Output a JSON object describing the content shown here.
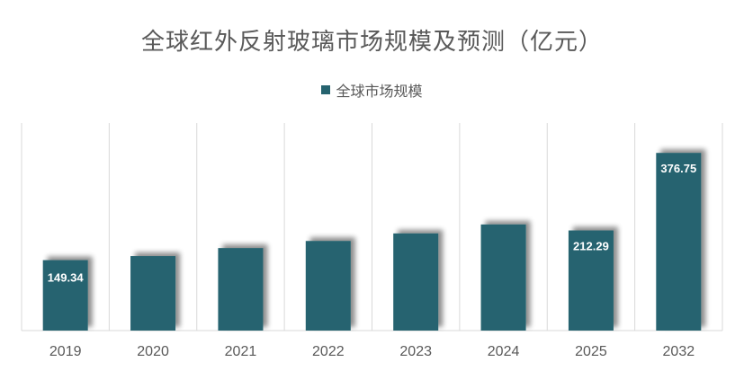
{
  "chart_data": {
    "type": "bar",
    "title": "全球红外反射玻璃市场规模及预测（亿元）",
    "xlabel": "",
    "ylabel": "",
    "categories": [
      "2019",
      "2020",
      "2021",
      "2022",
      "2023",
      "2024",
      "2025",
      "2032"
    ],
    "series": [
      {
        "name": "全球市场规模",
        "values": [
          149.34,
          158,
          175,
          190,
          206,
          225,
          212.29,
          376.75
        ],
        "data_labels": [
          "149.34",
          "",
          "",
          "",
          "",
          "",
          "212.29",
          "376.75"
        ]
      }
    ],
    "ylim": [
      0,
      440
    ],
    "legend_position": "top-center",
    "grid": "vertical-category-separators",
    "bar_color": "#26636F"
  }
}
